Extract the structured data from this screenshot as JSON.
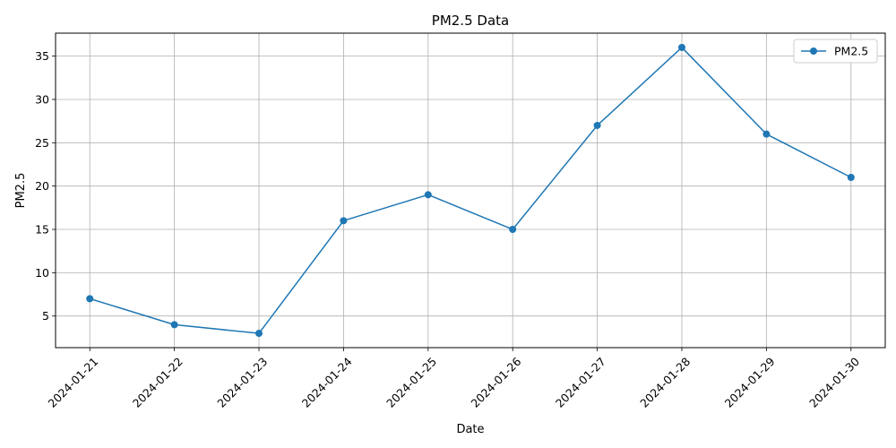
{
  "chart_data": {
    "type": "line",
    "title": "PM2.5 Data",
    "xlabel": "Date",
    "ylabel": "PM2.5",
    "x": [
      "2024-01-21",
      "2024-01-22",
      "2024-01-23",
      "2024-01-24",
      "2024-01-25",
      "2024-01-26",
      "2024-01-27",
      "2024-01-28",
      "2024-01-29",
      "2024-01-30"
    ],
    "series": [
      {
        "name": "PM2.5",
        "values": [
          7,
          4,
          3,
          16,
          19,
          15,
          27,
          36,
          26,
          21
        ],
        "color": "#1f77b4",
        "marker": "circle"
      }
    ],
    "ylim": [
      1.35,
      37.65
    ],
    "yticks": [
      5,
      10,
      15,
      20,
      25,
      30,
      35
    ],
    "grid": true,
    "legend": "top-right",
    "xtick_rotation": 45
  }
}
